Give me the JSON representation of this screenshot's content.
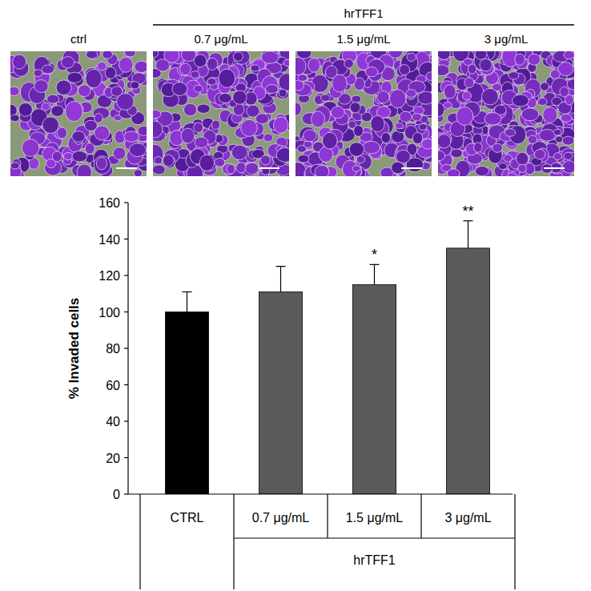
{
  "chart_data": {
    "type": "bar",
    "categories": [
      "CTRL",
      "0.7 μg/mL",
      "1.5 μg/mL",
      "3 μg/mL"
    ],
    "values": [
      100,
      111,
      115,
      135
    ],
    "errors": [
      11,
      14,
      11,
      15
    ],
    "significance": [
      null,
      null,
      "*",
      "**"
    ],
    "colors": [
      "#000000",
      "#5a5a5a",
      "#5a5a5a",
      "#5a5a5a"
    ],
    "y_label": "% Invaded cells",
    "group_label": "hrTFF1",
    "ylim": [
      0,
      160
    ],
    "yticks": [
      0,
      20,
      40,
      60,
      80,
      100,
      120,
      140,
      160
    ]
  },
  "image_panel": {
    "labels": [
      "ctrl",
      "0.7 μg/mL",
      "1.5 μg/mL",
      "3 μg/mL"
    ],
    "group_label": "hrTFF1"
  }
}
